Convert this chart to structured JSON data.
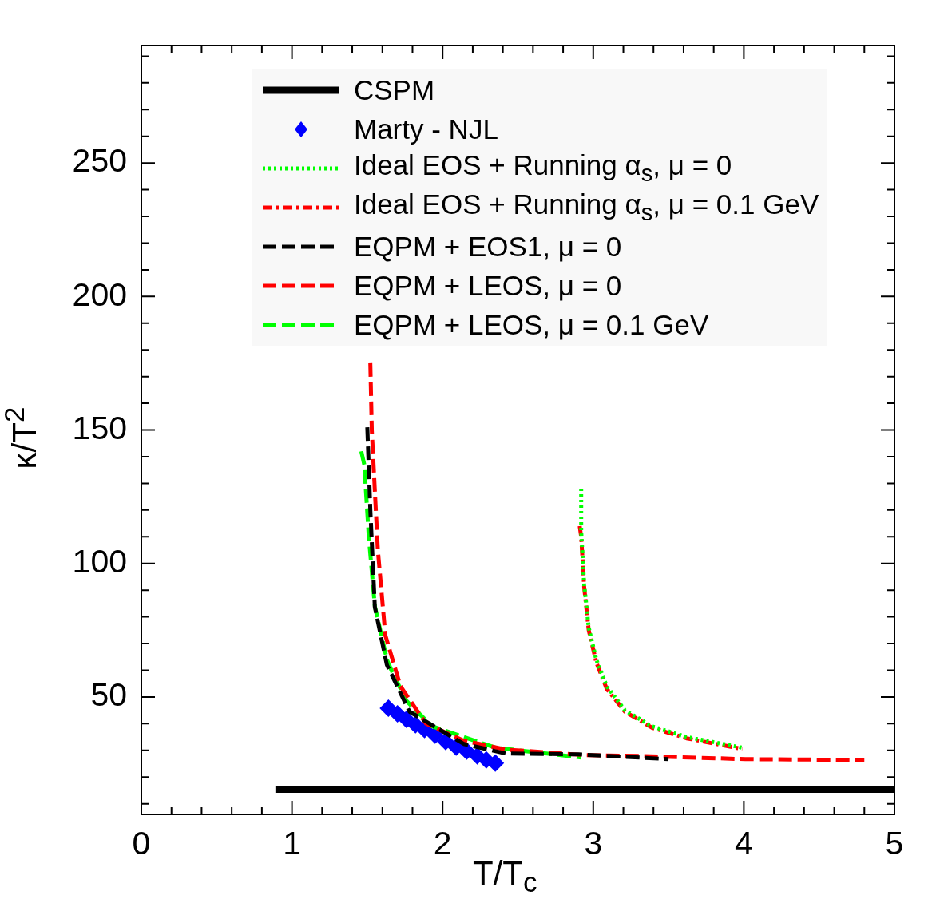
{
  "chart_data": {
    "type": "line",
    "xlabel": "T/T$_{c}$",
    "ylabel": "κ/T$^{2}$",
    "xlim": [
      0,
      5
    ],
    "ylim": [
      6,
      294
    ],
    "xticks": [
      0,
      {
        "value": 0.2,
        "label": null
      },
      {
        "value": 0.4,
        "label": null
      },
      {
        "value": 0.6,
        "label": null
      },
      {
        "value": 0.8,
        "label": null
      },
      1,
      {
        "value": 1.2,
        "label": null
      },
      {
        "value": 1.4,
        "label": null
      },
      {
        "value": 1.6,
        "label": null
      },
      {
        "value": 1.8,
        "label": null
      },
      2,
      {
        "value": 2.2,
        "label": null
      },
      {
        "value": 2.4,
        "label": null
      },
      {
        "value": 2.6,
        "label": null
      },
      {
        "value": 2.8,
        "label": null
      },
      3,
      {
        "value": 3.2,
        "label": null
      },
      {
        "value": 3.4,
        "label": null
      },
      {
        "value": 3.6,
        "label": null
      },
      {
        "value": 3.8,
        "label": null
      },
      4,
      {
        "value": 4.2,
        "label": null
      },
      {
        "value": 4.4,
        "label": null
      },
      {
        "value": 4.6,
        "label": null
      },
      {
        "value": 4.8,
        "label": null
      },
      5
    ],
    "yticks": [
      {
        "value": 10,
        "label": null
      },
      {
        "value": 20,
        "label": null
      },
      {
        "value": 30,
        "label": null
      },
      {
        "value": 40,
        "label": null
      },
      50,
      {
        "value": 60,
        "label": null
      },
      {
        "value": 70,
        "label": null
      },
      {
        "value": 80,
        "label": null
      },
      {
        "value": 90,
        "label": null
      },
      100,
      {
        "value": 110,
        "label": null
      },
      {
        "value": 120,
        "label": null
      },
      {
        "value": 130,
        "label": null
      },
      {
        "value": 140,
        "label": null
      },
      150,
      {
        "value": 160,
        "label": null
      },
      {
        "value": 170,
        "label": null
      },
      {
        "value": 180,
        "label": null
      },
      {
        "value": 190,
        "label": null
      },
      200,
      {
        "value": 210,
        "label": null
      },
      {
        "value": 220,
        "label": null
      },
      {
        "value": 230,
        "label": null
      },
      {
        "value": 240,
        "label": null
      },
      250,
      {
        "value": 260,
        "label": null
      },
      {
        "value": 270,
        "label": null
      },
      {
        "value": 280,
        "label": null
      },
      {
        "value": 290,
        "label": null
      }
    ],
    "grid": false,
    "legend": "top",
    "series": [
      {
        "name": "CSPM",
        "line_style": "solid",
        "color": "#000000",
        "x": [
          0.89,
          5
        ],
        "values": [
          15.4,
          15.4
        ]
      },
      {
        "name": "Marty - NJL",
        "type": "scatter",
        "marker": "diamond",
        "color": "#0000ff",
        "x": [
          1.64,
          1.7,
          1.76,
          1.82,
          1.88,
          1.95,
          2.02,
          2.09,
          2.16,
          2.23,
          2.29,
          2.35
        ],
        "values": [
          45.8,
          43.7,
          41.6,
          39.6,
          37.8,
          35.7,
          33.3,
          31.2,
          29.7,
          27.9,
          26.4,
          25.2
        ]
      },
      {
        "name": "Ideal EOS + Running α$_{s}$, μ = 0",
        "line_style": "dotted",
        "color": "#00ff00",
        "x": [
          2.92,
          2.92,
          2.94,
          2.97,
          3.02,
          3.09,
          3.21,
          3.39,
          3.62,
          3.99
        ],
        "values": [
          128,
          112,
          92,
          76,
          64,
          54,
          45,
          39,
          35,
          31
        ]
      },
      {
        "name": "Ideal EOS + Running α$_{s}$, μ = 0.1 GeV",
        "line_style": "dashdot",
        "color": "#ff0000",
        "x": [
          2.91,
          2.92,
          2.94,
          2.97,
          3.02,
          3.09,
          3.21,
          3.39,
          3.62,
          3.99
        ],
        "values": [
          114,
          110,
          91,
          75,
          63,
          53,
          44.5,
          38.5,
          34.5,
          30.5
        ]
      },
      {
        "name": "EQPM + EOS1, μ = 0",
        "line_style": "dashed",
        "color": "#000000",
        "x": [
          1.5,
          1.52,
          1.55,
          1.63,
          1.78,
          2.14,
          2.42,
          2.9,
          3.5
        ],
        "values": [
          151,
          120,
          83.7,
          62,
          44.5,
          32.4,
          28.8,
          28.5,
          26.7
        ]
      },
      {
        "name": "EQPM + LEOS, μ = 0",
        "line_style": "dashed",
        "color": "#ff0000",
        "x": [
          1.52,
          1.53,
          1.57,
          1.62,
          1.72,
          1.89,
          2.14,
          2.42,
          2.95,
          3.3,
          4.01,
          4.8
        ],
        "values": [
          175,
          149.7,
          105,
          73,
          54,
          40,
          33.6,
          30.3,
          28.2,
          27.9,
          26.7,
          26.4
        ]
      },
      {
        "name": "EQPM + LEOS, μ = 0.1 GeV",
        "line_style": "dashed",
        "color": "#00ff00",
        "x": [
          1.46,
          1.48,
          1.51,
          1.55,
          1.63,
          1.66,
          1.76,
          1.93,
          2.35,
          2.92
        ],
        "values": [
          142,
          137,
          110,
          84,
          64,
          60,
          48.5,
          39,
          31,
          27.3
        ]
      }
    ]
  }
}
